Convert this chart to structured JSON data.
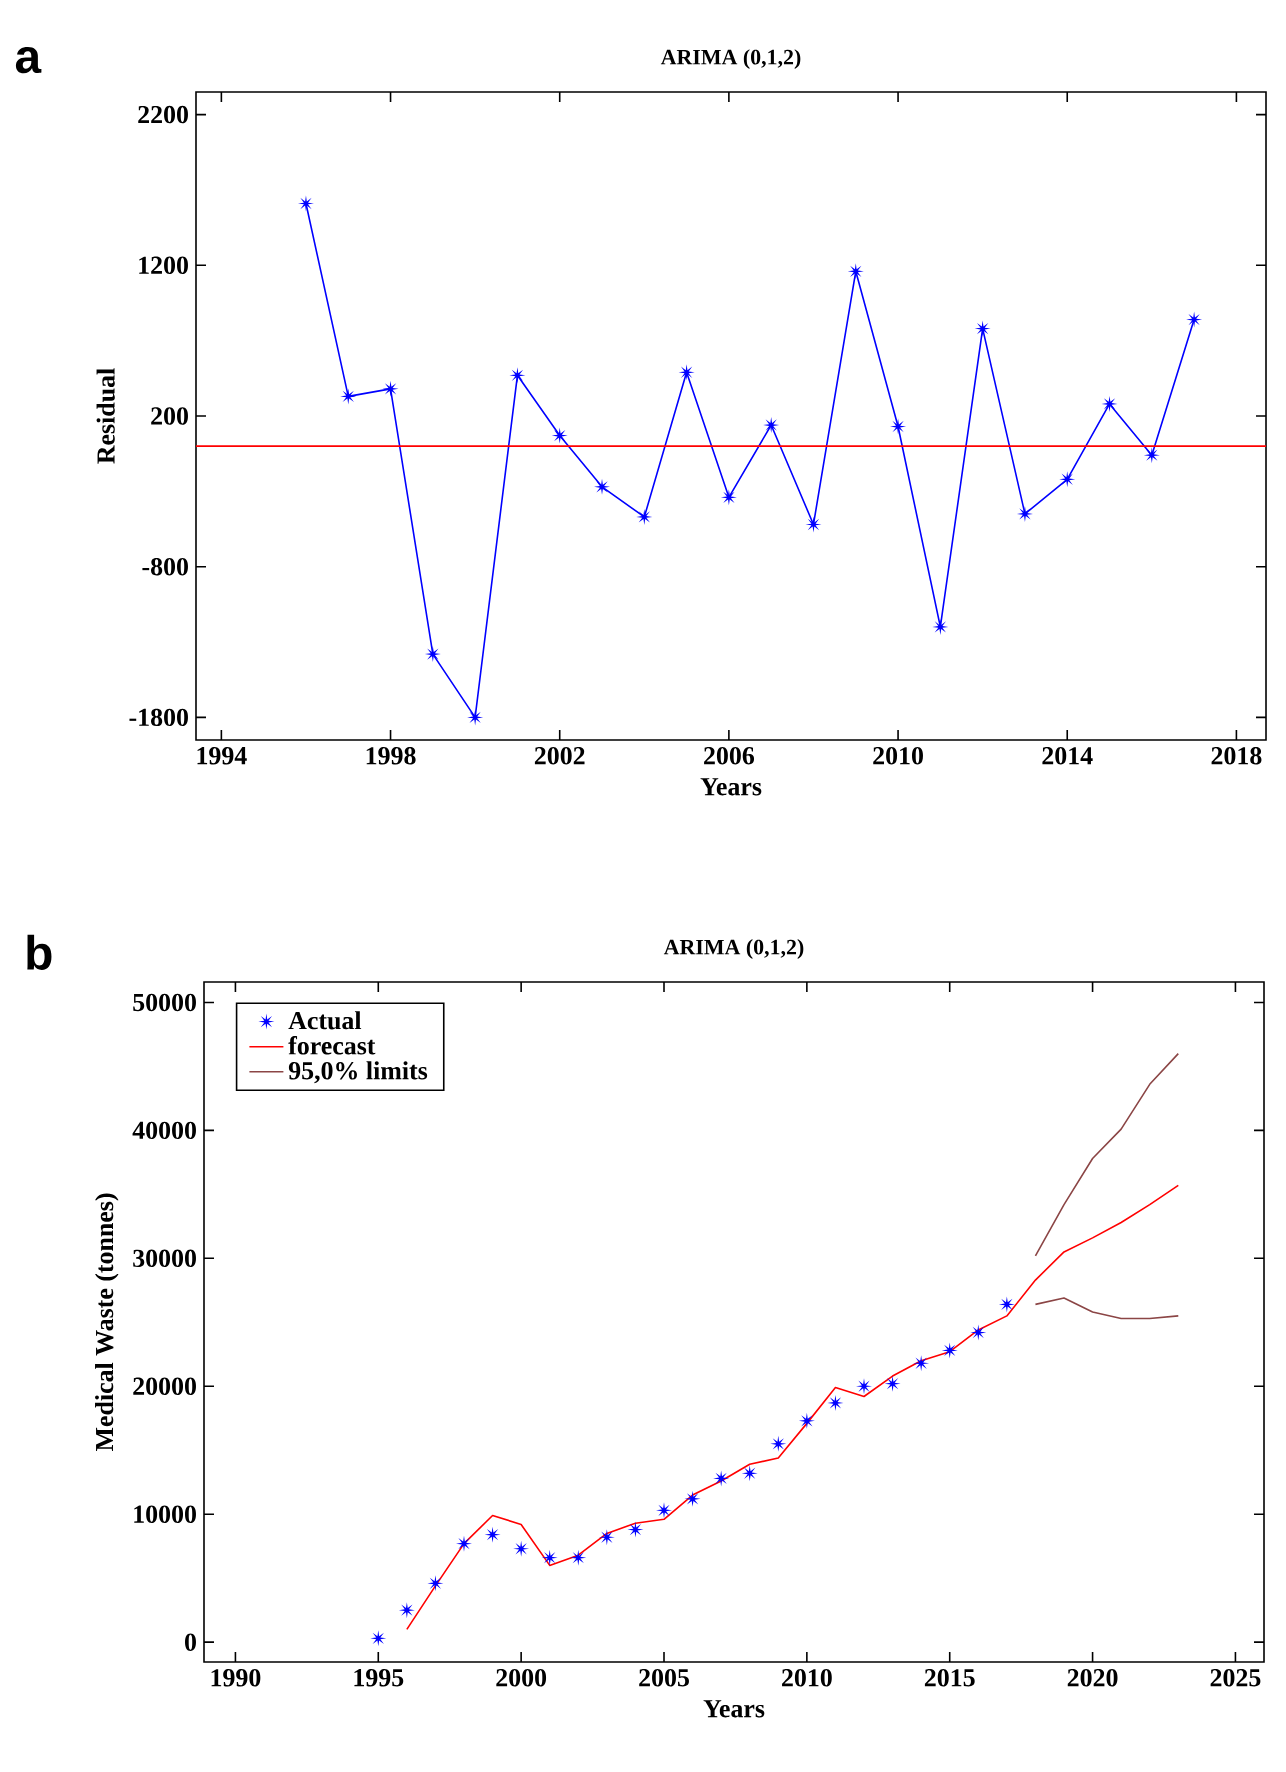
{
  "chart_data": [
    {
      "type": "line",
      "title": "ARIMA (0,1,2)",
      "xlabel": "Years",
      "ylabel": "Residual",
      "annotations": [
        "a"
      ],
      "x": [
        1996,
        1997,
        1998,
        1999,
        2000,
        2001,
        2002,
        2003,
        2004,
        2005,
        2006,
        2007,
        2008,
        2009,
        2010,
        2011,
        2012,
        2013,
        2014,
        2015,
        2016,
        2017
      ],
      "series": [
        {
          "color": "#0000ff",
          "marker": "star",
          "values": [
            1610,
            330,
            380,
            -1380,
            -1800,
            470,
            70,
            -270,
            -470,
            490,
            -340,
            140,
            -520,
            1160,
            130,
            -1200,
            780,
            -450,
            -220,
            280,
            -60,
            840
          ]
        }
      ],
      "ref_lines": [
        {
          "axis": "y",
          "value": 0,
          "color": "#ff0000"
        }
      ],
      "xlim": [
        1993.4,
        2018.7
      ],
      "ylim": [
        -1950,
        2350
      ],
      "xticks": [
        1994,
        1998,
        2002,
        2006,
        2010,
        2014,
        2018
      ],
      "yticks": [
        -1800,
        -800,
        200,
        1200,
        2200
      ]
    },
    {
      "type": "line",
      "title": "ARIMA (0,1,2)",
      "xlabel": "Years",
      "ylabel": "Medical Waste (tonnes)",
      "annotations": [
        "b"
      ],
      "legend": "top left",
      "series": [
        {
          "name": "Actual",
          "type": "scatter",
          "marker": "star",
          "color": "#0000ff",
          "x": [
            1995,
            1996,
            1997,
            1998,
            1999,
            2000,
            2001,
            2002,
            2003,
            2004,
            2005,
            2006,
            2007,
            2008,
            2009,
            2010,
            2011,
            2012,
            2013,
            2014,
            2015,
            2016,
            2017
          ],
          "values": [
            300,
            2500,
            4600,
            7700,
            8400,
            7300,
            6600,
            6600,
            8200,
            8800,
            10300,
            11200,
            12800,
            13200,
            15500,
            17300,
            18700,
            20000,
            20200,
            21800,
            22800,
            24200,
            26400
          ]
        },
        {
          "name": "forecast",
          "type": "line",
          "color": "#ff0000",
          "x": [
            1996,
            1997,
            1998,
            1999,
            2000,
            2001,
            2002,
            2003,
            2004,
            2005,
            2006,
            2007,
            2008,
            2009,
            2010,
            2011,
            2012,
            2013,
            2014,
            2015,
            2016,
            2017,
            2018,
            2019,
            2020,
            2021,
            2022,
            2023
          ],
          "values": [
            1000,
            4400,
            7700,
            9900,
            9200,
            6000,
            6800,
            8500,
            9300,
            9600,
            11500,
            12600,
            13900,
            14400,
            17100,
            19900,
            19200,
            20800,
            22000,
            22700,
            24400,
            25500,
            28300,
            30500,
            31600,
            32800,
            34200,
            35700
          ]
        },
        {
          "name": "95,0% limits",
          "type": "line",
          "color": "#8b4545",
          "x": [
            2018,
            2019,
            2020,
            2021,
            2022,
            2023
          ],
          "values": [
            30200,
            34200,
            37800,
            40100,
            43600,
            46000
          ]
        },
        {
          "type": "line",
          "color": "#8b4545",
          "x": [
            2018,
            2019,
            2020,
            2021,
            2022,
            2023
          ],
          "values": [
            26400,
            26900,
            25800,
            25300,
            25300,
            25500
          ]
        }
      ],
      "xlim": [
        1988.9,
        2026
      ],
      "ylim": [
        -1550,
        51600
      ],
      "xticks": [
        1990,
        1995,
        2000,
        2005,
        2010,
        2015,
        2020,
        2025
      ],
      "yticks": [
        0,
        10000,
        20000,
        30000,
        40000,
        50000
      ]
    }
  ]
}
